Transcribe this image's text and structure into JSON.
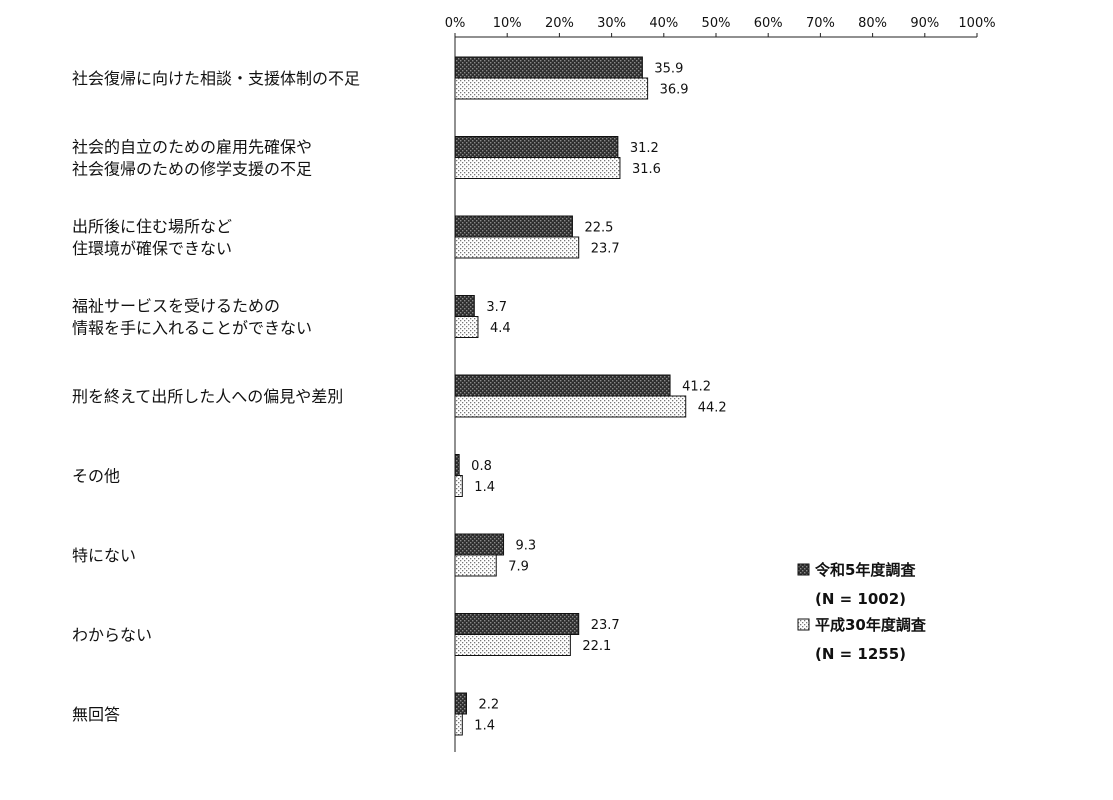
{
  "chart_data": {
    "type": "bar",
    "orientation": "horizontal",
    "categories": [
      [
        "社会復帰に向けた相談・支援体制の不足"
      ],
      [
        "社会的自立のための雇用先確保や",
        "社会復帰のための修学支援の不足"
      ],
      [
        "出所後に住む場所など",
        "住環境が確保できない"
      ],
      [
        "福祉サービスを受けるための",
        "情報を手に入れることができない"
      ],
      [
        "刑を終えて出所した人への偏見や差別"
      ],
      [
        "その他"
      ],
      [
        "特にない"
      ],
      [
        "わからない"
      ],
      [
        "無回答"
      ]
    ],
    "series": [
      {
        "name": "令和5年度調査",
        "n_label": "(N = 1002)",
        "values": [
          35.9,
          31.2,
          22.5,
          3.7,
          41.2,
          0.8,
          9.3,
          23.7,
          2.2
        ],
        "value_labels": [
          "35.9",
          "31.2",
          "22.5",
          "3.7",
          "41.2",
          "0.8",
          "9.3",
          "23.7",
          "2.2"
        ],
        "fill": "#3a3a3a"
      },
      {
        "name": "平成30年度調査",
        "n_label": "(N = 1255)",
        "values": [
          36.9,
          31.6,
          23.7,
          4.4,
          44.2,
          1.4,
          7.9,
          22.1,
          1.4
        ],
        "value_labels": [
          "36.9",
          "31.6",
          "23.7",
          "4.4",
          "44.2",
          "1.4",
          "7.9",
          "22.1",
          "1.4"
        ],
        "fill": "#f2f2f2"
      }
    ],
    "xlim": [
      0,
      100
    ],
    "x_ticks": [
      "0%",
      "10%",
      "20%",
      "30%",
      "40%",
      "50%",
      "60%",
      "70%",
      "80%",
      "90%",
      "100%"
    ],
    "axis_position": "top",
    "grid": false,
    "legend_position": "bottom-right"
  }
}
